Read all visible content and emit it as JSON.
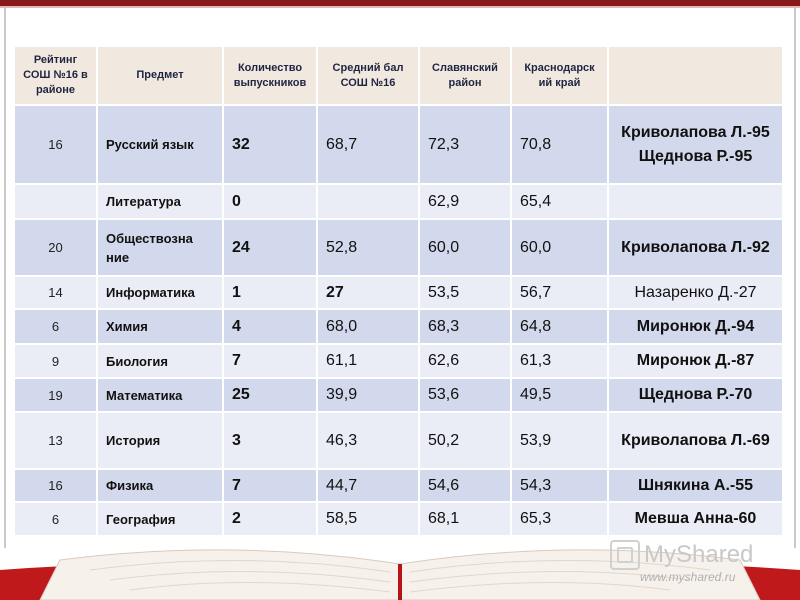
{
  "header": {
    "rating": "Рейтинг СОШ №16 в районе",
    "subject": "Предмет",
    "count": "Количество выпускников",
    "avg": "Средний бал СОШ №16",
    "slav": "Славянский район",
    "krai": "Краснодарск ий край",
    "best": ""
  },
  "rows": [
    {
      "rank": "16",
      "subject": "Русский язык",
      "count": "32",
      "avg": "68,7",
      "slav": "72,3",
      "krai": "70,8",
      "best": "Криволапова Л.-95 Щеднова Р.-95"
    },
    {
      "rank": "",
      "subject": "Литература",
      "count": "0",
      "avg": "",
      "slav": "62,9",
      "krai": "65,4",
      "best": ""
    },
    {
      "rank": "20",
      "subject": "Обществозна ние",
      "count": "24",
      "avg": "52,8",
      "slav": "60,0",
      "krai": "60,0",
      "best": "Криволапова Л.-92"
    },
    {
      "rank": "14",
      "subject": "Информатика",
      "count": "1",
      "avg": "27",
      "slav": "53,5",
      "krai": "56,7",
      "best": "Назаренко Д.-27"
    },
    {
      "rank": "6",
      "subject": "Химия",
      "count": "4",
      "avg": "68,0",
      "slav": "68,3",
      "krai": "64,8",
      "best": "Миронюк Д.-94"
    },
    {
      "rank": "9",
      "subject": "Биология",
      "count": "7",
      "avg": "61,1",
      "slav": "62,6",
      "krai": "61,3",
      "best": "Миронюк Д.-87"
    },
    {
      "rank": "19",
      "subject": "Математика",
      "count": "25",
      "avg": "39,9",
      "slav": "53,6",
      "krai": "49,5",
      "best": "Щеднова Р.-70"
    },
    {
      "rank": "13",
      "subject": "История",
      "count": "3",
      "avg": "46,3",
      "slav": "50,2",
      "krai": "53,9",
      "best": "Криволапова Л.-69"
    },
    {
      "rank": "16",
      "subject": "Физика",
      "count": "7",
      "avg": "44,7",
      "slav": "54,6",
      "krai": "54,3",
      "best": "Шнякина А.-55"
    },
    {
      "rank": "6",
      "subject": "География",
      "count": "2",
      "avg": "58,5",
      "slav": "68,1",
      "krai": "65,3",
      "best": "Мевша Анна-60"
    }
  ],
  "watermark": {
    "brand": "MyShared",
    "url": "www.myshared.ru"
  },
  "colors": {
    "header_bg": "#f1e9e0",
    "row_dark": "#d3d9ec",
    "row_light": "#eaedf6",
    "book_red": "#c0191c"
  }
}
